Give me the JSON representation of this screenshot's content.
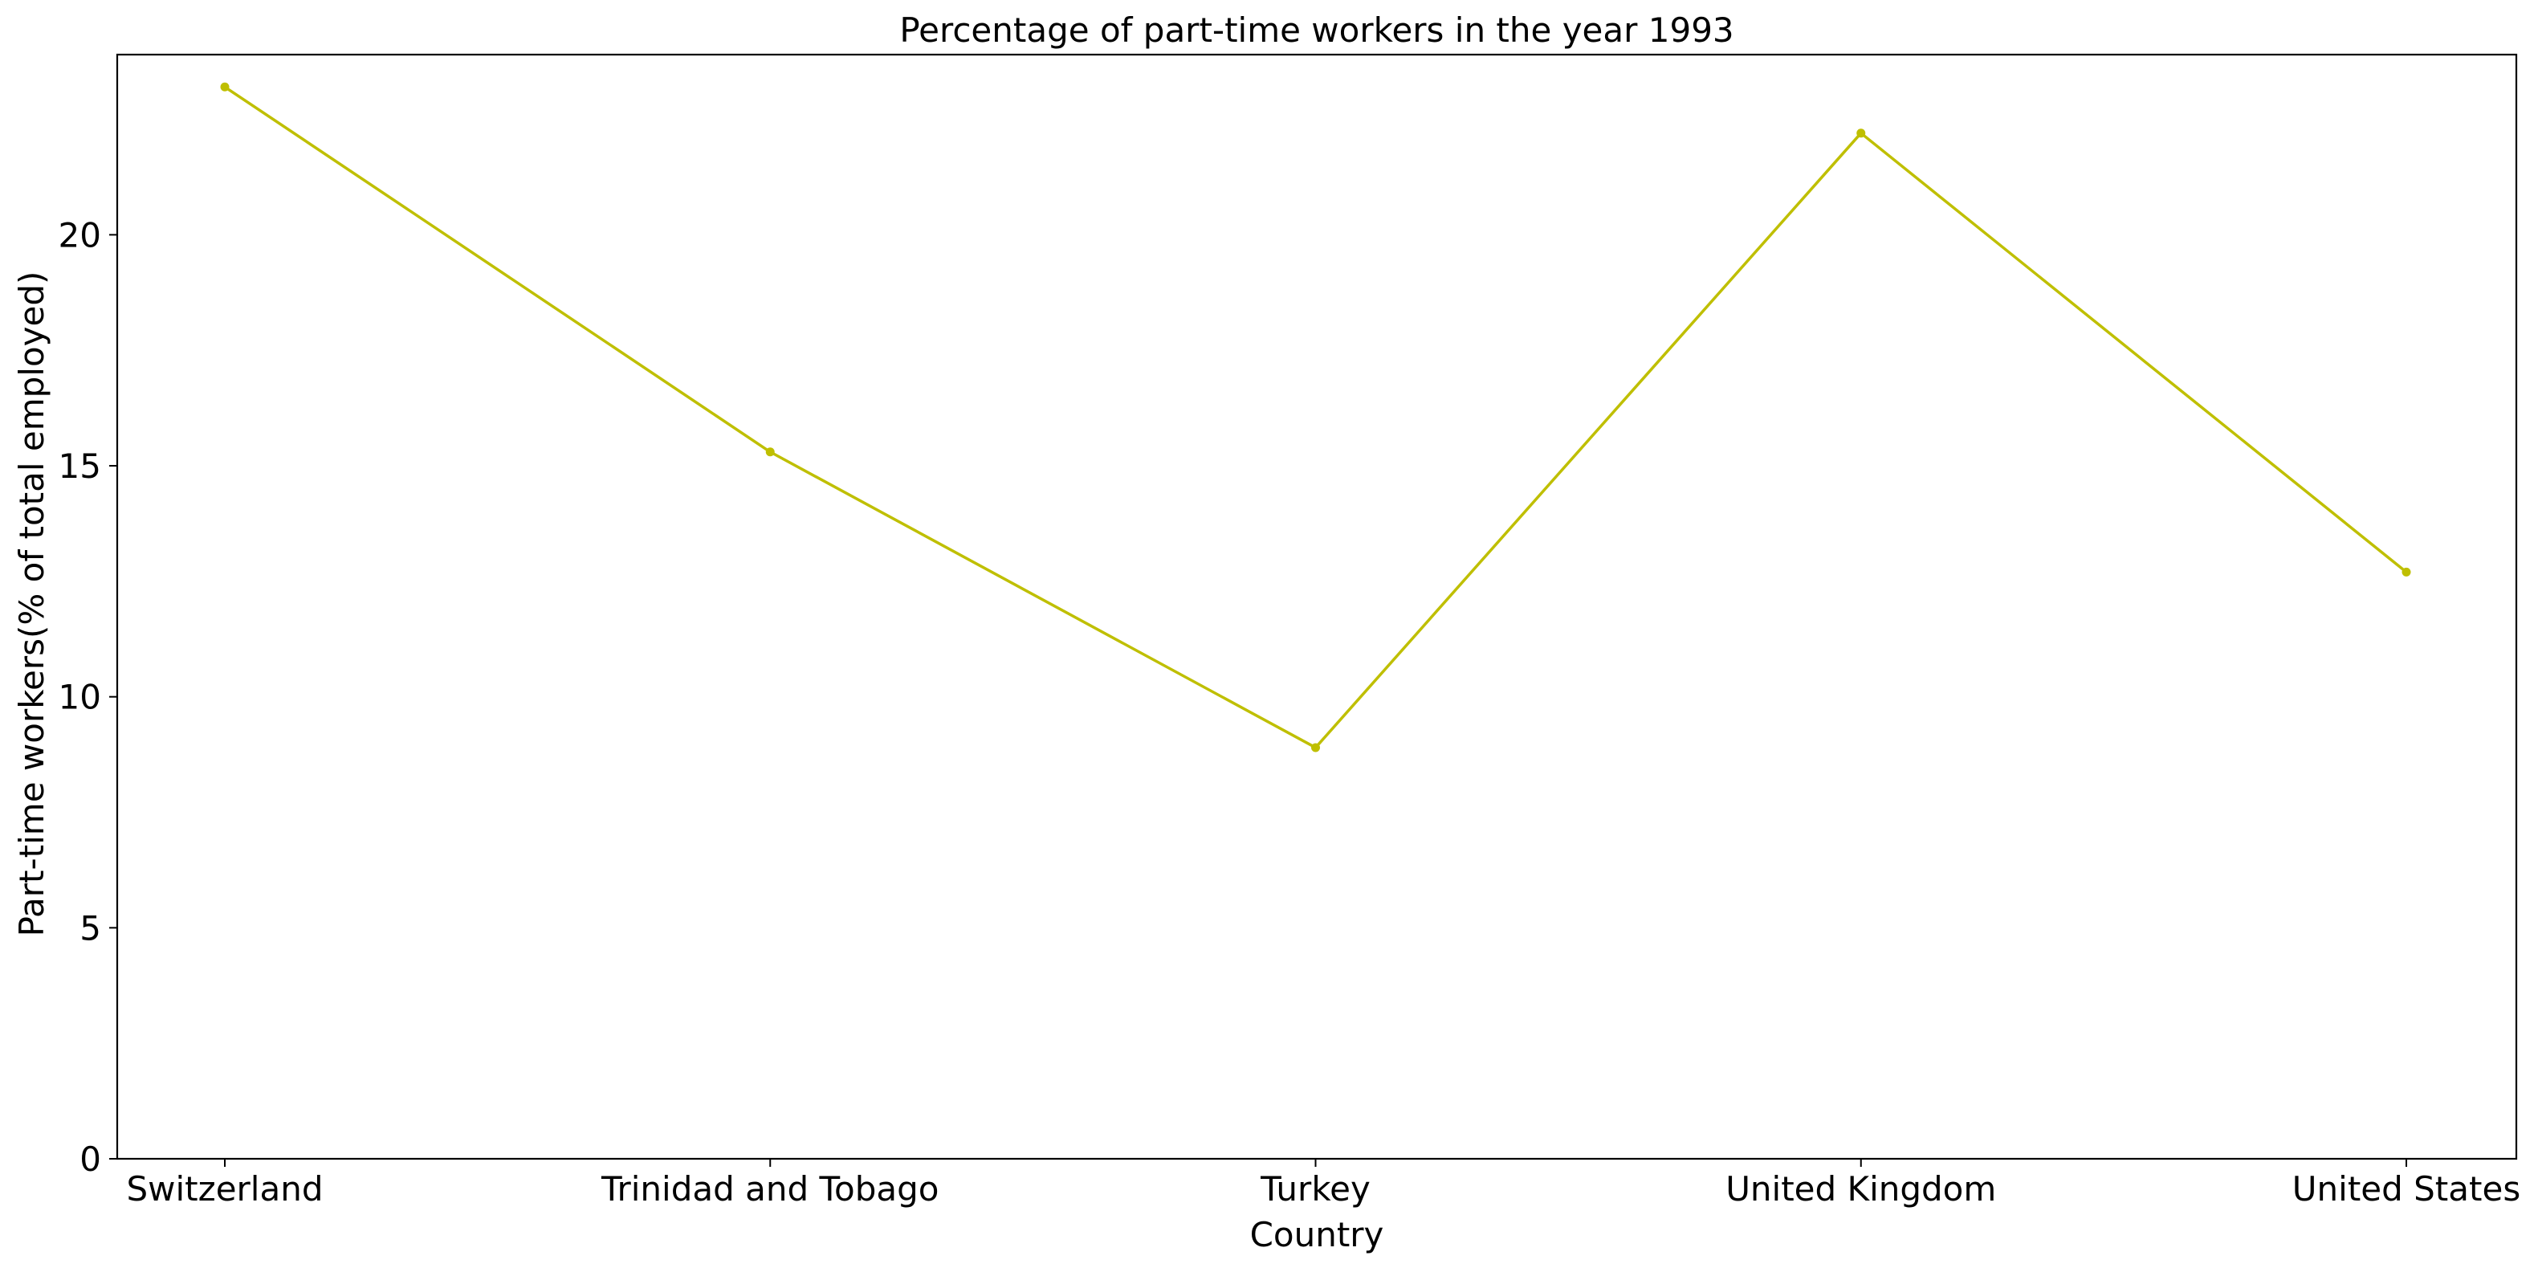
{
  "chart_data": {
    "type": "line",
    "title": "Percentage of part-time workers in the year 1993",
    "xlabel": "Country",
    "ylabel": "Part-time workers(% of total employed)",
    "categories": [
      "Switzerland",
      "Trinidad and Tobago",
      "Turkey",
      "United Kingdom",
      "United States"
    ],
    "series": [
      {
        "values": [
          23.2,
          15.3,
          8.9,
          22.2,
          12.7
        ],
        "color": "#bfbf00"
      }
    ],
    "yticks": [
      "0",
      "5",
      "10",
      "15",
      "20"
    ],
    "ylim": [
      0,
      23.9
    ],
    "grid": false,
    "legend": "none"
  }
}
